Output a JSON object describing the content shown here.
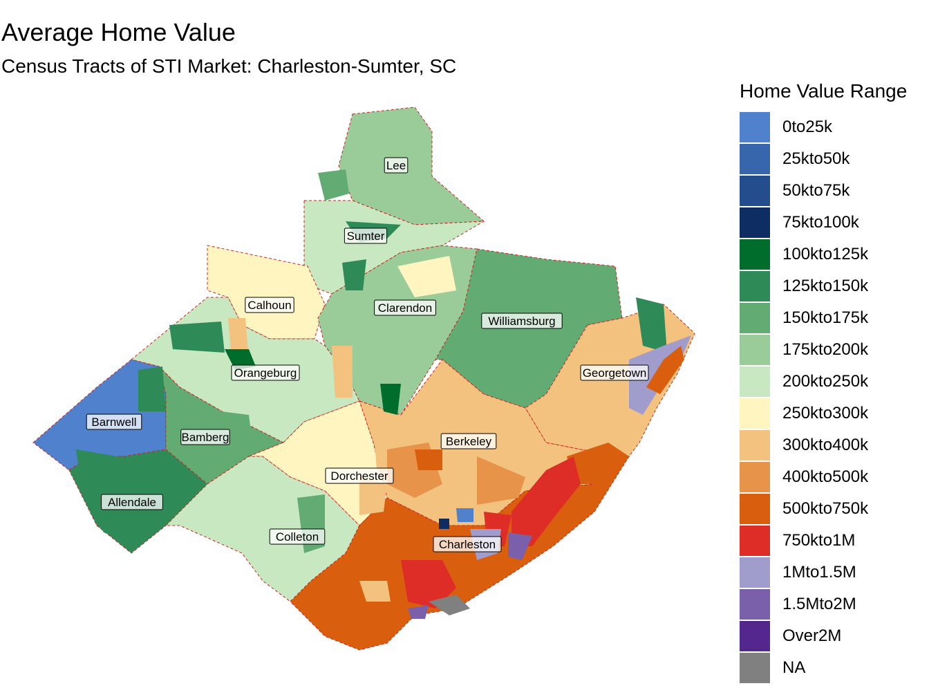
{
  "title": "Average Home Value",
  "subtitle": "Census Tracts of STI Market: Charleston-Sumter, SC",
  "legend": {
    "title": "Home Value Range",
    "items": [
      {
        "label": "0to25k",
        "color": "#4f81cd"
      },
      {
        "label": "25kto50k",
        "color": "#3766ad"
      },
      {
        "label": "50kto75k",
        "color": "#234d8c"
      },
      {
        "label": "75kto100k",
        "color": "#0e2d63"
      },
      {
        "label": "100kto125k",
        "color": "#006d2c"
      },
      {
        "label": "125kto150k",
        "color": "#2e8b57"
      },
      {
        "label": "150kto175k",
        "color": "#62ab73"
      },
      {
        "label": "175kto200k",
        "color": "#99cc99"
      },
      {
        "label": "200kto250k",
        "color": "#c7e8c0"
      },
      {
        "label": "250kto300k",
        "color": "#fff5c0"
      },
      {
        "label": "300kto400k",
        "color": "#f2c27e"
      },
      {
        "label": "400kto500k",
        "color": "#e8934a"
      },
      {
        "label": "500kto750k",
        "color": "#d95f0e"
      },
      {
        "label": "750kto1M",
        "color": "#de2d26"
      },
      {
        "label": "1Mto1.5M",
        "color": "#a09ccb"
      },
      {
        "label": "1.5Mto2M",
        "color": "#7a5fab"
      },
      {
        "label": "Over2M",
        "color": "#54278f"
      },
      {
        "label": "NA",
        "color": "#808080"
      }
    ]
  },
  "counties": [
    {
      "name": "Lee",
      "fill": "175kto200k"
    },
    {
      "name": "Sumter",
      "fill": "200kto250k"
    },
    {
      "name": "Calhoun",
      "fill": "250kto300k"
    },
    {
      "name": "Clarendon",
      "fill": "175kto200k"
    },
    {
      "name": "Williamsburg",
      "fill": "150kto175k"
    },
    {
      "name": "Orangeburg",
      "fill": "200kto250k"
    },
    {
      "name": "Georgetown",
      "fill": "300kto400k"
    },
    {
      "name": "Barnwell",
      "fill": "0to25k"
    },
    {
      "name": "Bamberg",
      "fill": "150kto175k"
    },
    {
      "name": "Berkeley",
      "fill": "300kto400k"
    },
    {
      "name": "Dorchester",
      "fill": "250kto300k"
    },
    {
      "name": "Allendale",
      "fill": "125kto150k"
    },
    {
      "name": "Colleton",
      "fill": "200kto250k"
    },
    {
      "name": "Charleston",
      "fill": "500kto750k"
    }
  ]
}
